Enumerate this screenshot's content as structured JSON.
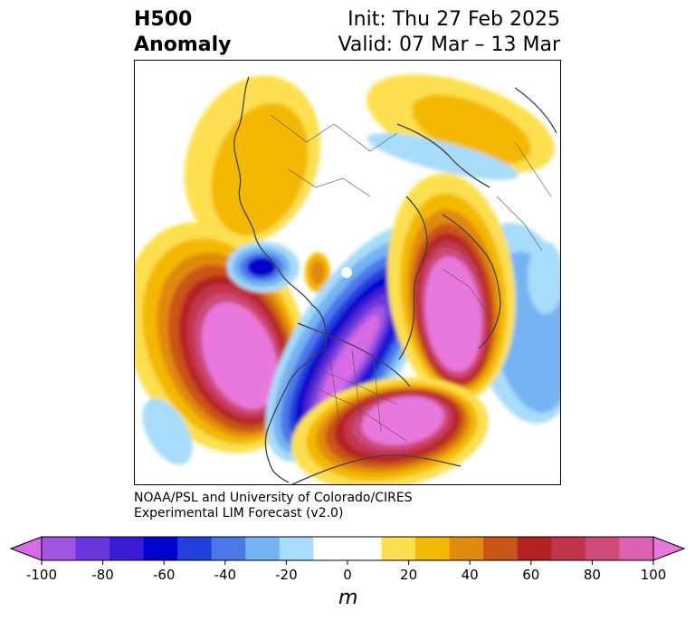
{
  "header": {
    "title_line1": "H500",
    "title_line2": "Anomaly",
    "init": "Init: Thu 27 Feb 2025",
    "valid": "Valid: 07 Mar – 13 Mar"
  },
  "credit": {
    "line1": "NOAA/PSL and University of Colorado/CIRES",
    "line2": "Experimental LIM Forecast (v2.0)"
  },
  "colorbar": {
    "unit": "m",
    "ticks": [
      "-100",
      "-80",
      "-60",
      "-40",
      "-20",
      "0",
      "20",
      "40",
      "60",
      "80",
      "100"
    ],
    "min_extend_color": "#d76ae6",
    "max_extend_color": "#e878dc",
    "colors": [
      "#9f55e0",
      "#6a35dd",
      "#3b1bd2",
      "#0000cc",
      "#2240dc",
      "#4c78ea",
      "#76b3f2",
      "#a8dcfb",
      "#ffffff",
      "#ffffff",
      "#fde050",
      "#f4b800",
      "#e08a10",
      "#c95517",
      "#b52222",
      "#c2344c",
      "#cf4a78",
      "#db60b2"
    ]
  },
  "map": {
    "projection": "north-polar-stereographic",
    "variable": "500 hPa geopotential height anomaly",
    "features": [
      "coastlines",
      "country borders",
      "US state borders"
    ]
  }
}
